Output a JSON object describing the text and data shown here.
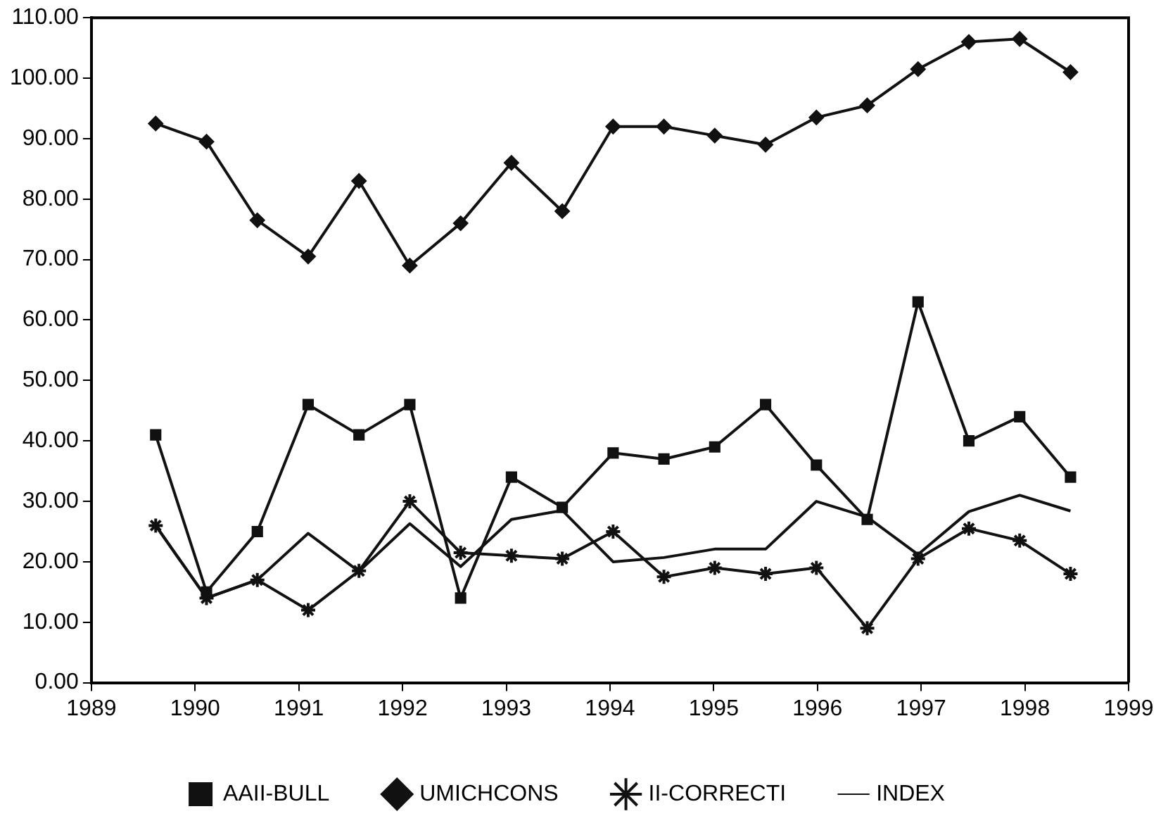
{
  "chart_data": {
    "type": "line",
    "x": [
      1989.62,
      1990.11,
      1990.6,
      1991.09,
      1991.58,
      1992.07,
      1992.56,
      1993.05,
      1993.54,
      1994.03,
      1994.52,
      1995.01,
      1995.5,
      1995.99,
      1996.48,
      1996.97,
      1997.46,
      1997.95,
      1998.44
    ],
    "series": [
      {
        "name": "AAII-BULL",
        "color": "#111111",
        "marker": "square",
        "values": [
          41,
          15,
          25,
          46,
          41,
          46,
          14,
          34,
          29,
          38,
          37,
          39,
          46,
          36,
          27,
          63,
          40,
          44,
          34
        ]
      },
      {
        "name": "UMICHCONS",
        "color": "#111111",
        "marker": "diamond",
        "values": [
          92.5,
          89.5,
          76.5,
          70.5,
          83,
          69,
          76,
          86,
          78,
          92,
          92,
          90.5,
          89,
          93.5,
          95.5,
          101.5,
          106,
          106.5,
          101
        ]
      },
      {
        "name": "II-CORRECTI",
        "color": "#111111",
        "marker": "cross",
        "values": [
          26,
          14,
          17,
          12,
          18.5,
          30,
          21.5,
          21,
          20.5,
          25,
          17.5,
          19,
          18,
          19,
          9,
          20.5,
          25.5,
          23.5,
          18
        ]
      },
      {
        "name": "INDEX",
        "color": "#111111",
        "marker": "none",
        "values": [
          26,
          14,
          17,
          24.7,
          18.4,
          26.3,
          19.2,
          27,
          28.5,
          20,
          20.7,
          22.1,
          22.1,
          30,
          27.4,
          21.2,
          28.3,
          31,
          28.4
        ]
      }
    ],
    "xlim": [
      1989,
      1999
    ],
    "xticks": [
      1989,
      1990,
      1991,
      1992,
      1993,
      1994,
      1995,
      1996,
      1997,
      1998,
      1999
    ],
    "ylim": [
      0,
      110
    ],
    "yticks": [
      {
        "value": 0,
        "label": "0.00"
      },
      {
        "value": 10,
        "label": "10.00"
      },
      {
        "value": 20,
        "label": "20.00"
      },
      {
        "value": 30,
        "label": "30.00"
      },
      {
        "value": 40,
        "label": "40.00"
      },
      {
        "value": 50,
        "label": "50.00"
      },
      {
        "value": 60,
        "label": "60.00"
      },
      {
        "value": 70,
        "label": "70.00"
      },
      {
        "value": 80,
        "label": "80.00"
      },
      {
        "value": 90,
        "label": "90.00"
      },
      {
        "value": 100,
        "label": "100.00"
      },
      {
        "value": 110,
        "label": "110.00"
      }
    ],
    "grid": false,
    "legend": "bottom",
    "line_style": "solid"
  }
}
